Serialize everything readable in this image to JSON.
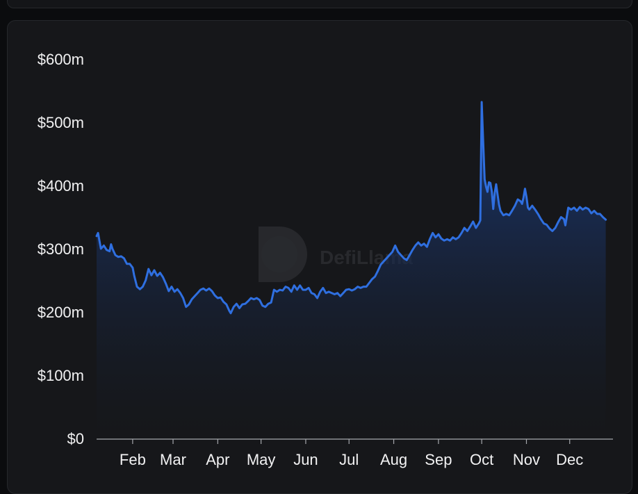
{
  "chart_data": {
    "type": "area",
    "title": "",
    "xlabel": "",
    "ylabel": "",
    "watermark": "DefiLlama",
    "colors": {
      "line": "#2f6fe0",
      "fill_top": "#1b3d80",
      "fill_bottom": "#16171a",
      "axis": "#a6a8ad"
    },
    "ylim": [
      0,
      600
    ],
    "y_ticks": [
      {
        "value": 0,
        "label": "$0"
      },
      {
        "value": 100,
        "label": "$100m"
      },
      {
        "value": 200,
        "label": "$200m"
      },
      {
        "value": 300,
        "label": "$300m"
      },
      {
        "value": 400,
        "label": "$400m"
      },
      {
        "value": 500,
        "label": "$500m"
      },
      {
        "value": 600,
        "label": "$600m"
      }
    ],
    "xlim": [
      "Jan 7",
      "Dec 31"
    ],
    "x_ticks": [
      {
        "date": "Feb 1",
        "label": "Feb"
      },
      {
        "date": "Mar 1",
        "label": "Mar"
      },
      {
        "date": "Apr 1",
        "label": "Apr"
      },
      {
        "date": "May 1",
        "label": "May"
      },
      {
        "date": "Jun 1",
        "label": "Jun"
      },
      {
        "date": "Jul 1",
        "label": "Jul"
      },
      {
        "date": "Aug 1",
        "label": "Aug"
      },
      {
        "date": "Sep 1",
        "label": "Sep"
      },
      {
        "date": "Oct 1",
        "label": "Oct"
      },
      {
        "date": "Nov 1",
        "label": "Nov"
      },
      {
        "date": "Dec 1",
        "label": "Dec"
      }
    ],
    "series": [
      {
        "unit": "$m",
        "points": [
          [
            "Jan 7",
            320
          ],
          [
            "Jan 8",
            325
          ],
          [
            "Jan 9",
            312
          ],
          [
            "Jan 10",
            300
          ],
          [
            "Jan 12",
            305
          ],
          [
            "Jan 14",
            298
          ],
          [
            "Jan 16",
            296
          ],
          [
            "Jan 17",
            307
          ],
          [
            "Jan 18",
            300
          ],
          [
            "Jan 20",
            290
          ],
          [
            "Jan 22",
            287
          ],
          [
            "Jan 24",
            288
          ],
          [
            "Jan 26",
            285
          ],
          [
            "Jan 28",
            276
          ],
          [
            "Jan 30",
            276
          ],
          [
            "Feb 1",
            270
          ],
          [
            "Feb 2",
            258
          ],
          [
            "Feb 4",
            240
          ],
          [
            "Feb 6",
            236
          ],
          [
            "Feb 8",
            240
          ],
          [
            "Feb 10",
            250
          ],
          [
            "Feb 12",
            268
          ],
          [
            "Feb 14",
            258
          ],
          [
            "Feb 16",
            266
          ],
          [
            "Feb 18",
            257
          ],
          [
            "Feb 20",
            262
          ],
          [
            "Feb 22",
            255
          ],
          [
            "Feb 24",
            245
          ],
          [
            "Feb 26",
            233
          ],
          [
            "Feb 28",
            240
          ],
          [
            "Mar 2",
            232
          ],
          [
            "Mar 4",
            236
          ],
          [
            "Mar 6",
            230
          ],
          [
            "Mar 8",
            222
          ],
          [
            "Mar 10",
            208
          ],
          [
            "Mar 12",
            212
          ],
          [
            "Mar 14",
            220
          ],
          [
            "Mar 16",
            225
          ],
          [
            "Mar 18",
            230
          ],
          [
            "Mar 20",
            235
          ],
          [
            "Mar 22",
            237
          ],
          [
            "Mar 24",
            234
          ],
          [
            "Mar 26",
            237
          ],
          [
            "Mar 28",
            233
          ],
          [
            "Mar 30",
            226
          ],
          [
            "Apr 1",
            222
          ],
          [
            "Apr 3",
            223
          ],
          [
            "Apr 5",
            216
          ],
          [
            "Apr 7",
            212
          ],
          [
            "Apr 9",
            202
          ],
          [
            "Apr 10",
            198
          ],
          [
            "Apr 12",
            208
          ],
          [
            "Apr 14",
            213
          ],
          [
            "Apr 16",
            206
          ],
          [
            "Apr 18",
            212
          ],
          [
            "Apr 20",
            213
          ],
          [
            "Apr 22",
            217
          ],
          [
            "Apr 24",
            222
          ],
          [
            "Apr 26",
            220
          ],
          [
            "Apr 28",
            222
          ],
          [
            "Apr 30",
            219
          ],
          [
            "May 2",
            210
          ],
          [
            "May 4",
            208
          ],
          [
            "May 6",
            213
          ],
          [
            "May 8",
            215
          ],
          [
            "May 10",
            235
          ],
          [
            "May 12",
            232
          ],
          [
            "May 14",
            235
          ],
          [
            "May 16",
            234
          ],
          [
            "May 18",
            240
          ],
          [
            "May 20",
            238
          ],
          [
            "May 22",
            232
          ],
          [
            "May 24",
            242
          ],
          [
            "May 26",
            235
          ],
          [
            "May 28",
            242
          ],
          [
            "May 30",
            235
          ],
          [
            "Jun 1",
            235
          ],
          [
            "Jun 3",
            238
          ],
          [
            "Jun 5",
            230
          ],
          [
            "Jun 7",
            228
          ],
          [
            "Jun 9",
            222
          ],
          [
            "Jun 11",
            232
          ],
          [
            "Jun 13",
            238
          ],
          [
            "Jun 15",
            230
          ],
          [
            "Jun 17",
            232
          ],
          [
            "Jun 19",
            230
          ],
          [
            "Jun 21",
            228
          ],
          [
            "Jun 23",
            230
          ],
          [
            "Jun 25",
            225
          ],
          [
            "Jun 27",
            230
          ],
          [
            "Jun 29",
            235
          ],
          [
            "Jul 1",
            236
          ],
          [
            "Jul 3",
            234
          ],
          [
            "Jul 5",
            236
          ],
          [
            "Jul 7",
            240
          ],
          [
            "Jul 9",
            238
          ],
          [
            "Jul 11",
            240
          ],
          [
            "Jul 13",
            240
          ],
          [
            "Jul 15",
            246
          ],
          [
            "Jul 17",
            252
          ],
          [
            "Jul 19",
            256
          ],
          [
            "Jul 21",
            265
          ],
          [
            "Jul 23",
            275
          ],
          [
            "Jul 25",
            280
          ],
          [
            "Jul 27",
            285
          ],
          [
            "Jul 29",
            290
          ],
          [
            "Jul 31",
            295
          ],
          [
            "Aug 2",
            305
          ],
          [
            "Aug 4",
            295
          ],
          [
            "Aug 6",
            290
          ],
          [
            "Aug 8",
            285
          ],
          [
            "Aug 10",
            282
          ],
          [
            "Aug 12",
            290
          ],
          [
            "Aug 14",
            298
          ],
          [
            "Aug 16",
            305
          ],
          [
            "Aug 18",
            310
          ],
          [
            "Aug 20",
            305
          ],
          [
            "Aug 22",
            308
          ],
          [
            "Aug 24",
            303
          ],
          [
            "Aug 26",
            315
          ],
          [
            "Aug 28",
            325
          ],
          [
            "Aug 30",
            318
          ],
          [
            "Sep 1",
            323
          ],
          [
            "Sep 3",
            316
          ],
          [
            "Sep 5",
            313
          ],
          [
            "Sep 7",
            315
          ],
          [
            "Sep 9",
            313
          ],
          [
            "Sep 11",
            318
          ],
          [
            "Sep 13",
            315
          ],
          [
            "Sep 15",
            318
          ],
          [
            "Sep 17",
            325
          ],
          [
            "Sep 19",
            333
          ],
          [
            "Sep 21",
            328
          ],
          [
            "Sep 23",
            335
          ],
          [
            "Sep 25",
            343
          ],
          [
            "Sep 27",
            333
          ],
          [
            "Sep 29",
            340
          ],
          [
            "Sep 30",
            345
          ],
          [
            "Oct 1",
            532
          ],
          [
            "Oct 2",
            470
          ],
          [
            "Oct 3",
            410
          ],
          [
            "Oct 4",
            398
          ],
          [
            "Oct 5",
            390
          ],
          [
            "Oct 6",
            405
          ],
          [
            "Oct 7",
            404
          ],
          [
            "Oct 8",
            390
          ],
          [
            "Oct 9",
            363
          ],
          [
            "Oct 10",
            388
          ],
          [
            "Oct 11",
            402
          ],
          [
            "Oct 12",
            385
          ],
          [
            "Oct 13",
            370
          ],
          [
            "Oct 14",
            360
          ],
          [
            "Oct 16",
            353
          ],
          [
            "Oct 18",
            355
          ],
          [
            "Oct 20",
            353
          ],
          [
            "Oct 22",
            360
          ],
          [
            "Oct 24",
            368
          ],
          [
            "Oct 26",
            378
          ],
          [
            "Oct 28",
            375
          ],
          [
            "Oct 29",
            371
          ],
          [
            "Oct 30",
            381
          ],
          [
            "Oct 31",
            395
          ],
          [
            "Nov 1",
            382
          ],
          [
            "Nov 2",
            365
          ],
          [
            "Nov 3",
            362
          ],
          [
            "Nov 5",
            368
          ],
          [
            "Nov 7",
            362
          ],
          [
            "Nov 9",
            355
          ],
          [
            "Nov 11",
            347
          ],
          [
            "Nov 13",
            340
          ],
          [
            "Nov 15",
            338
          ],
          [
            "Nov 17",
            332
          ],
          [
            "Nov 19",
            328
          ],
          [
            "Nov 21",
            333
          ],
          [
            "Nov 23",
            342
          ],
          [
            "Nov 25",
            350
          ],
          [
            "Nov 27",
            347
          ],
          [
            "Nov 28",
            337
          ],
          [
            "Nov 30",
            365
          ],
          [
            "Dec 2",
            362
          ],
          [
            "Dec 4",
            365
          ],
          [
            "Dec 6",
            360
          ],
          [
            "Dec 8",
            366
          ],
          [
            "Dec 10",
            362
          ],
          [
            "Dec 12",
            365
          ],
          [
            "Dec 14",
            363
          ],
          [
            "Dec 16",
            356
          ],
          [
            "Dec 18",
            360
          ],
          [
            "Dec 20",
            355
          ],
          [
            "Dec 22",
            355
          ],
          [
            "Dec 24",
            350
          ],
          [
            "Dec 26",
            346
          ]
        ]
      }
    ]
  }
}
